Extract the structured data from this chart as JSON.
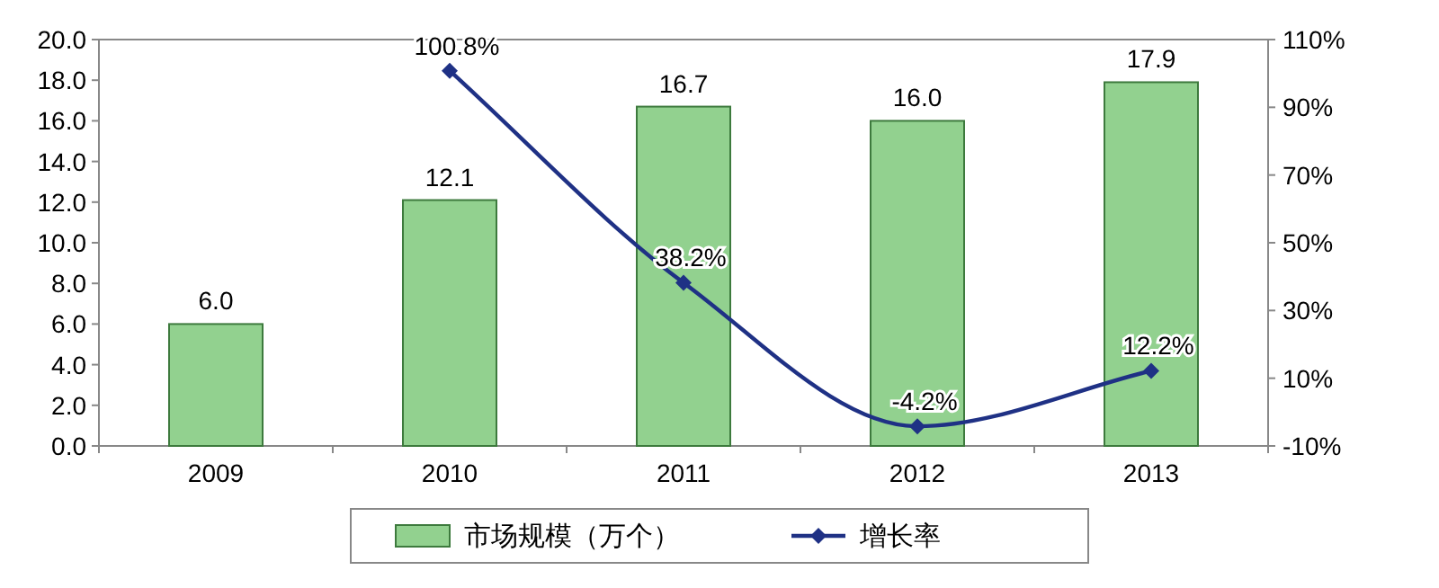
{
  "chart_data": {
    "type": "bar",
    "categories": [
      "2009",
      "2010",
      "2011",
      "2012",
      "2013"
    ],
    "series": [
      {
        "name": "市场规模（万个）",
        "color": "#92d18f",
        "values": [
          6.0,
          12.1,
          16.7,
          16.0,
          17.9
        ],
        "value_labels": [
          "6.0",
          "12.1",
          "16.7",
          "16.0",
          "17.9"
        ]
      },
      {
        "name": "增长率",
        "type": "line",
        "axis": "y2",
        "color": "#1f3185",
        "values": [
          null,
          100.8,
          38.2,
          -4.2,
          12.2
        ],
        "value_labels": [
          null,
          "100.8%",
          "38.2%",
          "-4.2%",
          "12.2%"
        ]
      }
    ],
    "ylim": [
      0,
      20
    ],
    "yticks": [
      {
        "value": 0,
        "label": "0.0"
      },
      {
        "value": 2,
        "label": "2.0"
      },
      {
        "value": 4,
        "label": "4.0"
      },
      {
        "value": 6,
        "label": "6.0"
      },
      {
        "value": 8,
        "label": "8.0"
      },
      {
        "value": 10,
        "label": "10.0"
      },
      {
        "value": 12,
        "label": "12.0"
      },
      {
        "value": 14,
        "label": "14.0"
      },
      {
        "value": 16,
        "label": "16.0"
      },
      {
        "value": 18,
        "label": "18.0"
      },
      {
        "value": 20,
        "label": "20.0"
      }
    ],
    "y2lim": [
      -10,
      110
    ],
    "y2ticks": [
      {
        "value": -10,
        "label": "-10%"
      },
      {
        "value": 10,
        "label": "10%"
      },
      {
        "value": 30,
        "label": "30%"
      },
      {
        "value": 50,
        "label": "50%"
      },
      {
        "value": 70,
        "label": "70%"
      },
      {
        "value": 90,
        "label": "90%"
      },
      {
        "value": 110,
        "label": "110%"
      }
    ],
    "marker": "diamond",
    "legend": "bottom"
  }
}
